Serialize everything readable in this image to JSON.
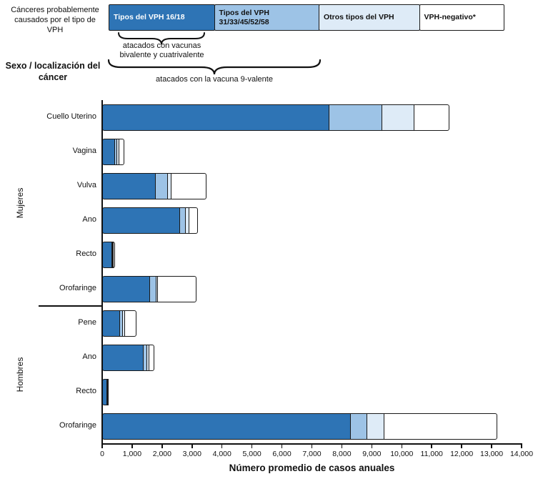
{
  "header": {
    "intro": "Cánceres probablemente causados por el tipo de VPH"
  },
  "legend": {
    "items": [
      {
        "label": "Tipos del VPH 16/18",
        "color": "#2E74B5",
        "text_color": "#FFFFFF"
      },
      {
        "label": "Tipos del VPH 31/33/45/52/58",
        "color": "#9DC3E6",
        "text_color": "#111111"
      },
      {
        "label": "Otros tipos del VPH",
        "color": "#DEEBF7",
        "text_color": "#111111"
      },
      {
        "label": "VPH-negativo*",
        "color": "#FFFFFF",
        "text_color": "#111111"
      }
    ],
    "annotation_bivalent": "atacados con vacunas bivalente y cuatrivalente",
    "annotation_9valent": "atacados con la vacuna 9-valente"
  },
  "chart_data": {
    "type": "bar",
    "stacked": true,
    "orientation": "horizontal",
    "xlabel": "Número promedio de casos anuales",
    "ylabel": "Sexo / localización del cáncer",
    "xlim": [
      0,
      14000
    ],
    "grid": false,
    "x_tick_labels": [
      "0",
      "1,000",
      "2,000",
      "3,000",
      "4,000",
      "5,000",
      "6,000",
      "7,000",
      "8,000",
      "9,000",
      "10,000",
      "11,000",
      "12,000",
      "13,000",
      "14,000"
    ],
    "series_names": [
      "Tipos del VPH 16/18",
      "Tipos del VPH 31/33/45/52/58",
      "Otros tipos del VPH",
      "VPH-negativo*"
    ],
    "rows": [
      {
        "group": "Mujeres",
        "label": "Cuello Uterino",
        "values": [
          7600,
          1800,
          1100,
          1200
        ]
      },
      {
        "group": "Mujeres",
        "label": "Vagina",
        "values": [
          450,
          100,
          100,
          200
        ]
      },
      {
        "group": "Mujeres",
        "label": "Vulva",
        "values": [
          1800,
          450,
          150,
          1200
        ]
      },
      {
        "group": "Mujeres",
        "label": "Ano",
        "values": [
          2600,
          250,
          150,
          300
        ]
      },
      {
        "group": "Mujeres",
        "label": "Recto",
        "values": [
          350,
          60,
          40,
          80
        ]
      },
      {
        "group": "Mujeres",
        "label": "Orofaringe",
        "values": [
          1600,
          250,
          100,
          1300
        ]
      },
      {
        "group": "Hombres",
        "label": "Pene",
        "values": [
          600,
          150,
          100,
          400
        ]
      },
      {
        "group": "Hombres",
        "label": "Ano",
        "values": [
          1400,
          150,
          100,
          200
        ]
      },
      {
        "group": "Hombres",
        "label": "Recto",
        "values": [
          180,
          40,
          20,
          50
        ]
      },
      {
        "group": "Hombres",
        "label": "Orofaringe",
        "values": [
          8300,
          600,
          600,
          3800
        ]
      }
    ]
  }
}
